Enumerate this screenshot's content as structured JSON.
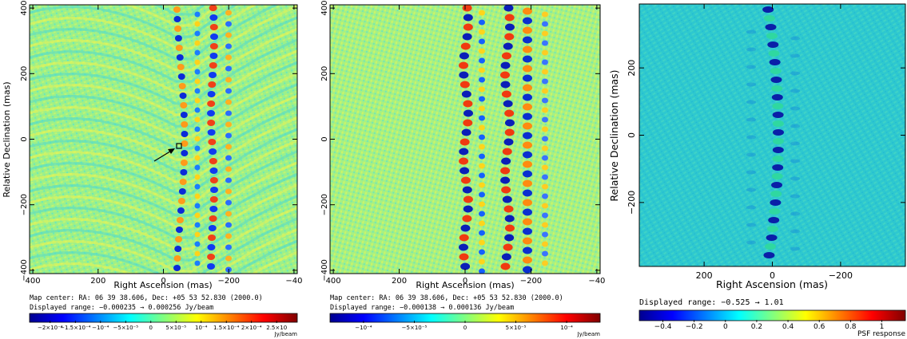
{
  "chart_data": [
    {
      "type": "heatmap",
      "xlabel": "Right Ascension  (mas)",
      "ylabel": "Relative Declination  (mas)",
      "xlim": [
        410,
        -410
      ],
      "ylim": [
        -410,
        410
      ],
      "x_ticks": [
        "400",
        "200",
        "0",
        "−200",
        "−40"
      ],
      "y_ticks": [
        "−400",
        "−200",
        "0",
        "200",
        "400"
      ],
      "caption_lines": [
        "Map center:  RA: 06 39 38.606,  Dec: +05 53 52.830 (2000.0)",
        "Displayed range: −0.000235 → 0.000256 Jy/beam"
      ],
      "colorbar_ticks": [
        "−2×10⁻⁴",
        "−1.5×10⁻⁴",
        "−10⁻⁴",
        "−5×10⁻⁵",
        "0",
        "5×10⁻⁵",
        "10⁻⁴",
        "1.5×10⁻⁴",
        "2×10⁻⁴",
        "2.5×10"
      ],
      "colorbar_unit": "Jy/beam"
    },
    {
      "type": "heatmap",
      "xlabel": "Right Ascension  (mas)",
      "ylabel": "",
      "xlim": [
        410,
        -410
      ],
      "ylim": [
        -410,
        410
      ],
      "x_ticks": [
        "400",
        "200",
        "0",
        "−200",
        "−40"
      ],
      "y_ticks": [
        "−400",
        "−200",
        "0",
        "200",
        "400"
      ],
      "caption_lines": [
        "Map center:  RA: 06 39 38.606,  Dec: +05 53 52.830 (2000.0)",
        "Displayed range: −0.000138 → 0.000136 Jy/beam"
      ],
      "colorbar_ticks": [
        "−10⁻⁴",
        "−5×10⁻⁵",
        "0",
        "5×10⁻⁵",
        "10⁻⁴"
      ],
      "colorbar_unit": "Jy/beam"
    },
    {
      "type": "heatmap",
      "xlabel": "Right Ascension  (mas)",
      "ylabel": "Relative Declination  (mas)",
      "xlim": [
        390,
        -390
      ],
      "ylim": [
        -390,
        390
      ],
      "x_ticks": [
        "200",
        "0",
        "−200"
      ],
      "y_ticks": [
        "−200",
        "0",
        "200"
      ],
      "caption_lines": [
        "Displayed range: −0.525 → 1.01"
      ],
      "colorbar_ticks": [
        "−0.4",
        "−0.2",
        "0",
        "0.2",
        "0.4",
        "0.6",
        "0.8",
        "1"
      ],
      "colorbar_unit": "PSF response"
    }
  ]
}
